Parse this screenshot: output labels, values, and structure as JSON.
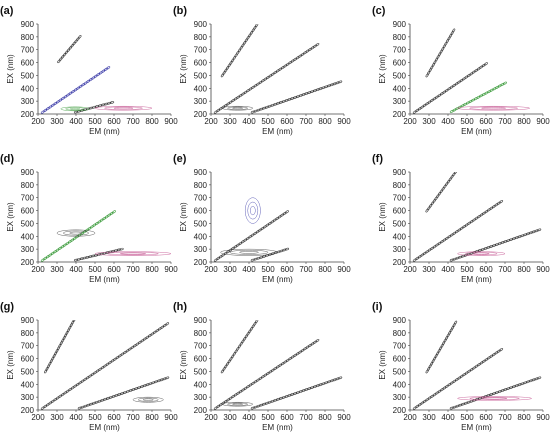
{
  "figure": {
    "shared_axes": {
      "xlabel": "EM (nm)",
      "ylabel": "EX (nm)",
      "xticks": [
        200,
        300,
        400,
        500,
        600,
        700,
        800,
        900
      ],
      "yticks": [
        200,
        300,
        400,
        500,
        600,
        700,
        800,
        900
      ],
      "xlim": [
        200,
        900
      ],
      "ylim": [
        200,
        900
      ]
    },
    "colors": {
      "contour_main": "#3a3a3a",
      "contour_blue": "#3b3ba8",
      "contour_purple": "#8a3aa0",
      "contour_green": "#3a9a3a",
      "contour_pink": "#c04a8a"
    }
  },
  "chart_data": [
    {
      "type": "heatmap",
      "panel": "(a)",
      "title": "(a)",
      "xlabel": "EM (nm)",
      "ylabel": "EX (nm)",
      "xlim": [
        200,
        900
      ],
      "ylim": [
        200,
        900
      ],
      "features": [
        {
          "name": "ridge",
          "color": "#3b3ba8",
          "points": [
            [
              225,
              215
            ],
            [
              570,
              560
            ]
          ]
        },
        {
          "name": "ridge",
          "color": "#3a3a3a",
          "points": [
            [
              400,
              215
            ],
            [
              590,
              290
            ]
          ]
        },
        {
          "name": "ridge",
          "color": "#3a3a3a",
          "points": [
            [
              310,
              610
            ],
            [
              420,
              800
            ]
          ]
        },
        {
          "name": "blob",
          "color": "#3a9a3a",
          "points": [
            [
              320,
              230
            ],
            [
              470,
              250
            ]
          ]
        },
        {
          "name": "blob",
          "color": "#c04a8a",
          "points": [
            [
              500,
              230
            ],
            [
              800,
              260
            ]
          ]
        }
      ]
    },
    {
      "type": "heatmap",
      "panel": "(b)",
      "title": "(b)",
      "xlabel": "EM (nm)",
      "ylabel": "EX (nm)",
      "xlim": [
        200,
        900
      ],
      "ylim": [
        200,
        900
      ],
      "features": [
        {
          "name": "ridge",
          "color": "#3a3a3a",
          "points": [
            [
              225,
              215
            ],
            [
              760,
              740
            ]
          ]
        },
        {
          "name": "ridge",
          "color": "#3a3a3a",
          "points": [
            [
              420,
              215
            ],
            [
              880,
              450
            ]
          ]
        },
        {
          "name": "ridge",
          "color": "#3a3a3a",
          "points": [
            [
              260,
              500
            ],
            [
              440,
              890
            ]
          ]
        },
        {
          "name": "blob",
          "color": "#3a3a3a",
          "points": [
            [
              260,
              230
            ],
            [
              420,
              260
            ]
          ]
        }
      ]
    },
    {
      "type": "heatmap",
      "panel": "(c)",
      "title": "(c)",
      "xlabel": "EM (nm)",
      "ylabel": "EX (nm)",
      "xlim": [
        200,
        900
      ],
      "ylim": [
        200,
        900
      ],
      "features": [
        {
          "name": "ridge",
          "color": "#3a3a3a",
          "points": [
            [
              225,
              215
            ],
            [
              600,
              590
            ]
          ]
        },
        {
          "name": "ridge",
          "color": "#3a9a3a",
          "points": [
            [
              420,
              220
            ],
            [
              700,
              440
            ]
          ]
        },
        {
          "name": "ridge",
          "color": "#3a3a3a",
          "points": [
            [
              290,
              500
            ],
            [
              430,
              850
            ]
          ]
        },
        {
          "name": "blob",
          "color": "#c04a8a",
          "points": [
            [
              450,
              230
            ],
            [
              830,
              260
            ]
          ]
        }
      ]
    },
    {
      "type": "heatmap",
      "panel": "(d)",
      "title": "(d)",
      "xlabel": "EM (nm)",
      "ylabel": "EX (nm)",
      "xlim": [
        200,
        900
      ],
      "ylim": [
        200,
        900
      ],
      "features": [
        {
          "name": "ridge",
          "color": "#3a9a3a",
          "points": [
            [
              225,
              215
            ],
            [
              600,
              590
            ]
          ]
        },
        {
          "name": "ridge",
          "color": "#3a3a3a",
          "points": [
            [
              400,
              215
            ],
            [
              640,
              300
            ]
          ]
        },
        {
          "name": "blob",
          "color": "#c04a8a",
          "points": [
            [
              500,
              260
            ],
            [
              900,
              270
            ]
          ]
        },
        {
          "name": "blob",
          "color": "#3a3a3a",
          "points": [
            [
              300,
              400
            ],
            [
              500,
              450
            ]
          ]
        }
      ]
    },
    {
      "type": "heatmap",
      "panel": "(e)",
      "title": "(e)",
      "xlabel": "EM (nm)",
      "ylabel": "EX (nm)",
      "xlim": [
        200,
        900
      ],
      "ylim": [
        200,
        900
      ],
      "features": [
        {
          "name": "ridge",
          "color": "#3a3a3a",
          "points": [
            [
              225,
              215
            ],
            [
              600,
              590
            ]
          ]
        },
        {
          "name": "ridge",
          "color": "#3a3a3a",
          "points": [
            [
              420,
              215
            ],
            [
              600,
              300
            ]
          ]
        },
        {
          "name": "blob",
          "color": "#3a3a3a",
          "points": [
            [
              250,
              250
            ],
            [
              550,
              300
            ]
          ]
        },
        {
          "name": "blob",
          "color": "#3b3ba8",
          "points": [
            [
              380,
              500
            ],
            [
              460,
              700
            ]
          ]
        }
      ]
    },
    {
      "type": "heatmap",
      "panel": "(f)",
      "title": "(f)",
      "xlabel": "EM (nm)",
      "ylabel": "EX (nm)",
      "xlim": [
        200,
        900
      ],
      "ylim": [
        200,
        900
      ],
      "features": [
        {
          "name": "ridge",
          "color": "#3a3a3a",
          "points": [
            [
              225,
              215
            ],
            [
              680,
              670
            ]
          ]
        },
        {
          "name": "ridge",
          "color": "#3a3a3a",
          "points": [
            [
              420,
              215
            ],
            [
              880,
              450
            ]
          ]
        },
        {
          "name": "ridge",
          "color": "#3a3a3a",
          "points": [
            [
              290,
              600
            ],
            [
              440,
              900
            ]
          ]
        },
        {
          "name": "blob",
          "color": "#c04a8a",
          "points": [
            [
              450,
              250
            ],
            [
              700,
              280
            ]
          ]
        }
      ]
    },
    {
      "type": "heatmap",
      "panel": "(g)",
      "title": "(g)",
      "xlabel": "EM (nm)",
      "ylabel": "EX (nm)",
      "xlim": [
        200,
        900
      ],
      "ylim": [
        200,
        900
      ],
      "features": [
        {
          "name": "ridge",
          "color": "#3a3a3a",
          "points": [
            [
              225,
              215
            ],
            [
              880,
              870
            ]
          ]
        },
        {
          "name": "ridge",
          "color": "#3a3a3a",
          "points": [
            [
              420,
              215
            ],
            [
              880,
              450
            ]
          ]
        },
        {
          "name": "ridge",
          "color": "#3a3a3a",
          "points": [
            [
              240,
              500
            ],
            [
              390,
              900
            ]
          ]
        },
        {
          "name": "blob",
          "color": "#3a3a3a",
          "points": [
            [
              700,
              260
            ],
            [
              860,
              300
            ]
          ]
        }
      ]
    },
    {
      "type": "heatmap",
      "panel": "(h)",
      "title": "(h)",
      "xlabel": "EM (nm)",
      "ylabel": "EX (nm)",
      "xlim": [
        200,
        900
      ],
      "ylim": [
        200,
        900
      ],
      "features": [
        {
          "name": "ridge",
          "color": "#3a3a3a",
          "points": [
            [
              225,
              215
            ],
            [
              760,
              740
            ]
          ]
        },
        {
          "name": "ridge",
          "color": "#3a3a3a",
          "points": [
            [
              420,
              215
            ],
            [
              880,
              450
            ]
          ]
        },
        {
          "name": "ridge",
          "color": "#3a3a3a",
          "points": [
            [
              260,
              500
            ],
            [
              440,
              890
            ]
          ]
        },
        {
          "name": "blob",
          "color": "#3a3a3a",
          "points": [
            [
              260,
              230
            ],
            [
              420,
              260
            ]
          ]
        }
      ]
    },
    {
      "type": "heatmap",
      "panel": "(i)",
      "title": "(i)",
      "xlabel": "EM (nm)",
      "ylabel": "EX (nm)",
      "xlim": [
        200,
        900
      ],
      "ylim": [
        200,
        900
      ],
      "features": [
        {
          "name": "ridge",
          "color": "#3a3a3a",
          "points": [
            [
              225,
              215
            ],
            [
              680,
              670
            ]
          ]
        },
        {
          "name": "ridge",
          "color": "#3a3a3a",
          "points": [
            [
              420,
              215
            ],
            [
              880,
              450
            ]
          ]
        },
        {
          "name": "ridge",
          "color": "#3a3a3a",
          "points": [
            [
              290,
              500
            ],
            [
              440,
              880
            ]
          ]
        },
        {
          "name": "blob",
          "color": "#c04a8a",
          "points": [
            [
              450,
              280
            ],
            [
              840,
              300
            ]
          ]
        }
      ]
    }
  ]
}
